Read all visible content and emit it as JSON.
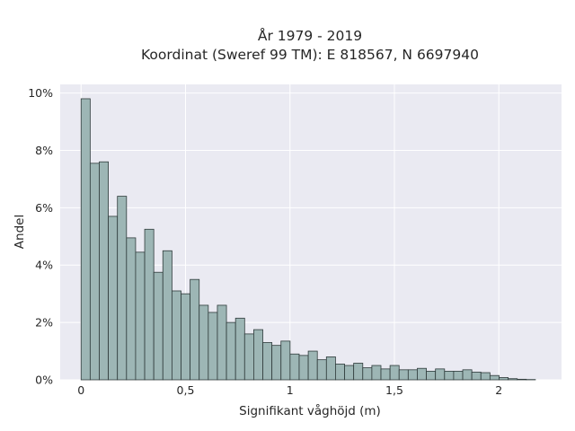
{
  "chart_data": {
    "type": "bar",
    "title": [
      "År 1979 - 2019",
      "Koordinat (Sweref 99 TM): E 818567, N 6697940"
    ],
    "xlabel": "Signifikant våghöjd (m)",
    "ylabel": "Andel",
    "xlim": [
      -0.1,
      2.3
    ],
    "ylim": [
      0,
      10.3
    ],
    "grid": true,
    "bin_width": 0.0435,
    "bin_start": 0,
    "values": [
      9.8,
      7.55,
      7.6,
      5.7,
      6.4,
      4.95,
      4.45,
      5.25,
      3.75,
      4.5,
      3.1,
      3.0,
      3.5,
      2.6,
      2.35,
      2.6,
      2.0,
      2.15,
      1.6,
      1.75,
      1.3,
      1.2,
      1.35,
      0.9,
      0.85,
      1.0,
      0.7,
      0.8,
      0.55,
      0.5,
      0.58,
      0.42,
      0.5,
      0.38,
      0.5,
      0.35,
      0.35,
      0.4,
      0.3,
      0.38,
      0.3,
      0.3,
      0.35,
      0.27,
      0.25,
      0.15,
      0.08,
      0.04,
      0.02,
      0.01
    ],
    "x_ticks": [
      {
        "value": 0,
        "label": "0"
      },
      {
        "value": 0.5,
        "label": "0,5"
      },
      {
        "value": 1,
        "label": "1"
      },
      {
        "value": 1.5,
        "label": "1,5"
      },
      {
        "value": 2,
        "label": "2"
      }
    ],
    "y_ticks": [
      {
        "value": 0,
        "label": "0%"
      },
      {
        "value": 2,
        "label": "2%"
      },
      {
        "value": 4,
        "label": "4%"
      },
      {
        "value": 6,
        "label": "6%"
      },
      {
        "value": 8,
        "label": "8%"
      },
      {
        "value": 10,
        "label": "10%"
      }
    ],
    "colors": {
      "background": "#eaeaf2",
      "bar_fill": "#9db6b5",
      "bar_edge": "#2f3b3b",
      "grid": "#ffffff"
    }
  }
}
